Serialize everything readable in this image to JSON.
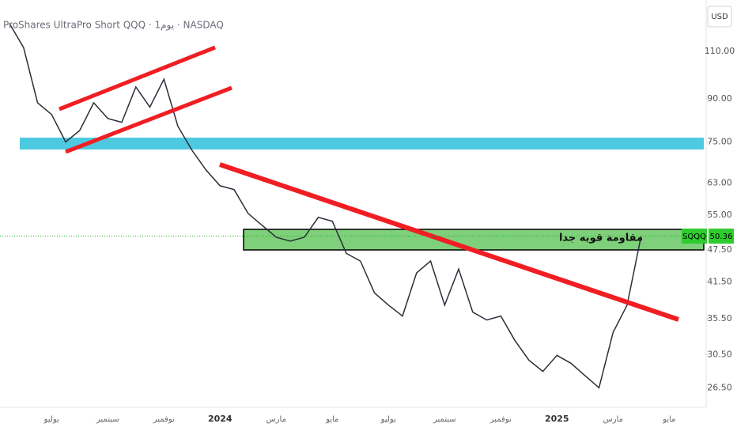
{
  "chart_data": {
    "type": "line",
    "title": "ProShares UltraPro Short QQQ · 1يوم · NASDAQ",
    "currency": "USD",
    "symbol": "SQQQ",
    "last_price": "50.36",
    "annotation": "مقاومة قويه جدا",
    "log_scale": true,
    "grid": false,
    "categories": [
      null,
      null,
      null,
      "يوليو",
      null,
      null,
      null,
      "سبتمبر",
      null,
      null,
      null,
      "نوفمبر",
      null,
      null,
      null,
      "2024",
      null,
      null,
      null,
      "مارس",
      null,
      null,
      null,
      "مايو",
      null,
      null,
      null,
      "يوليو",
      null,
      null,
      null,
      "سبتمبر",
      null,
      null,
      null,
      "نوفمبر",
      null,
      null,
      null,
      "2025",
      null,
      null,
      null,
      "مارس",
      null,
      null,
      null,
      "مايو"
    ],
    "series": [
      {
        "name": "SQQQ",
        "color": "#2a2e39",
        "values": [
          123.7,
          111.8,
          88.5,
          84.2,
          75.0,
          78.7,
          88.5,
          82.8,
          81.5,
          94.6,
          86.9,
          97.8,
          80.1,
          72.4,
          66.6,
          62.3,
          61.3,
          55.4,
          52.7,
          50.1,
          49.3,
          50.1,
          54.5,
          53.6,
          46.8,
          45.3,
          39.6,
          37.6,
          35.9,
          43.1,
          45.3,
          37.6,
          43.8,
          36.5,
          35.3,
          35.9,
          32.4,
          29.8,
          28.4,
          30.4,
          29.4,
          27.9,
          26.5,
          33.5,
          37.6,
          50.36,
          null,
          null
        ]
      }
    ],
    "ylim": [
      24.4,
      136.7
    ],
    "yticks": [
      {
        "value": 110,
        "label": "110.00"
      },
      {
        "value": 90,
        "label": "90.00"
      },
      {
        "value": 75,
        "label": "75.00"
      },
      {
        "value": 63,
        "label": "63.00"
      },
      {
        "value": 55,
        "label": "55.00"
      },
      {
        "value": 47.5,
        "label": "47.50"
      },
      {
        "value": 41.5,
        "label": "41.50"
      },
      {
        "value": 35.5,
        "label": "35.50"
      },
      {
        "value": 30.5,
        "label": "30.50"
      },
      {
        "value": 26.5,
        "label": "26.50"
      }
    ]
  }
}
